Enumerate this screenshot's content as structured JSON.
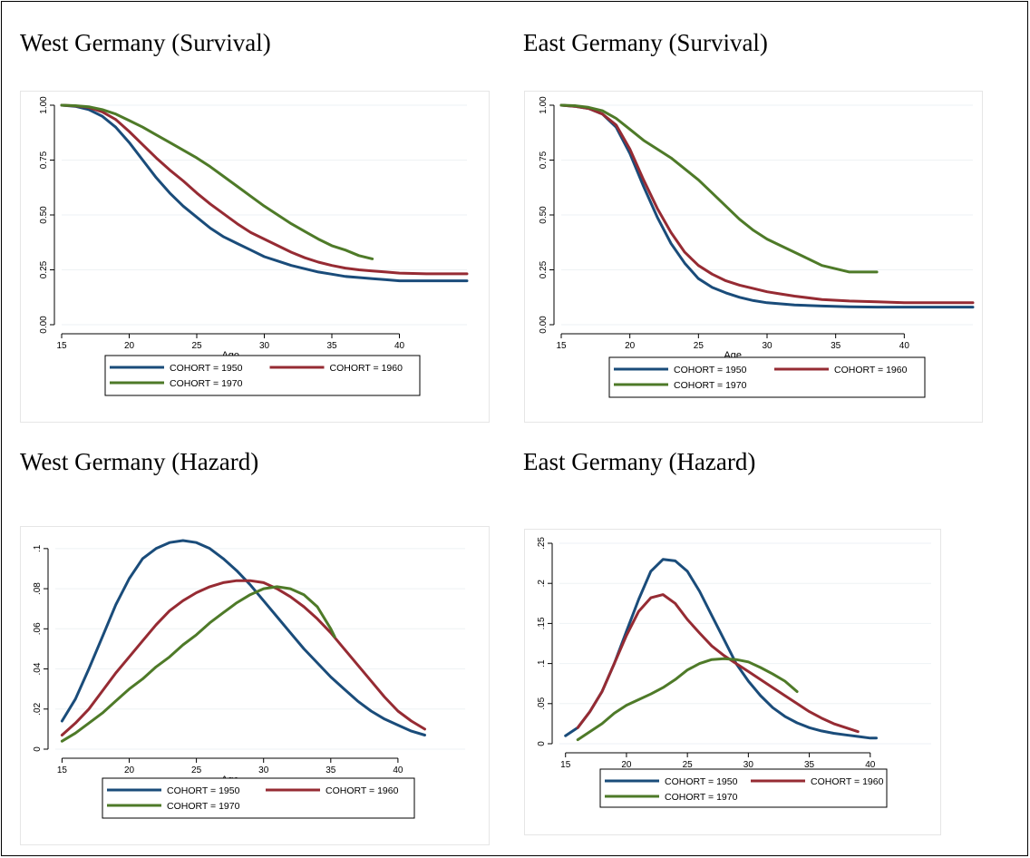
{
  "colors": {
    "c1950": "#1a4c7a",
    "c1960": "#962b33",
    "c1970": "#4e7a28"
  },
  "chart_data": [
    {
      "type": "line",
      "title": "West Germany (Survival)",
      "xlabel": "Age",
      "ylabel": "",
      "xlim": [
        15,
        45
      ],
      "ylim": [
        0,
        1
      ],
      "xticks": [
        15,
        20,
        25,
        30,
        35,
        40
      ],
      "yticks": [
        0,
        0.25,
        0.5,
        0.75,
        1
      ],
      "ytick_labels": [
        "0.00",
        "0.25",
        "0.50",
        "0.75",
        "1.00"
      ],
      "legend_position": "bottom",
      "series": [
        {
          "name": "COHORT = 1950",
          "x": [
            15,
            16,
            17,
            18,
            19,
            20,
            21,
            22,
            23,
            24,
            25,
            26,
            27,
            28,
            29,
            30,
            31,
            32,
            33,
            34,
            35,
            36,
            37,
            38,
            39,
            40,
            42,
            45
          ],
          "y": [
            1.0,
            0.995,
            0.98,
            0.95,
            0.9,
            0.83,
            0.75,
            0.67,
            0.6,
            0.54,
            0.49,
            0.44,
            0.4,
            0.37,
            0.34,
            0.31,
            0.29,
            0.27,
            0.255,
            0.24,
            0.23,
            0.22,
            0.215,
            0.21,
            0.205,
            0.2,
            0.2,
            0.2
          ]
        },
        {
          "name": "COHORT = 1960",
          "x": [
            15,
            16,
            17,
            18,
            19,
            20,
            21,
            22,
            23,
            24,
            25,
            26,
            27,
            28,
            29,
            30,
            31,
            32,
            33,
            34,
            35,
            36,
            37,
            38,
            39,
            40,
            42,
            45
          ],
          "y": [
            1.0,
            0.997,
            0.99,
            0.97,
            0.935,
            0.88,
            0.82,
            0.76,
            0.705,
            0.655,
            0.6,
            0.55,
            0.505,
            0.46,
            0.42,
            0.39,
            0.36,
            0.33,
            0.305,
            0.285,
            0.27,
            0.258,
            0.25,
            0.245,
            0.24,
            0.235,
            0.232,
            0.232
          ]
        },
        {
          "name": "COHORT = 1970",
          "x": [
            15,
            16,
            17,
            18,
            19,
            20,
            21,
            22,
            23,
            24,
            25,
            26,
            27,
            28,
            29,
            30,
            31,
            32,
            33,
            34,
            35,
            36,
            37,
            38
          ],
          "y": [
            1.0,
            0.998,
            0.993,
            0.98,
            0.96,
            0.93,
            0.9,
            0.865,
            0.83,
            0.795,
            0.76,
            0.72,
            0.675,
            0.63,
            0.585,
            0.54,
            0.5,
            0.46,
            0.425,
            0.39,
            0.36,
            0.34,
            0.315,
            0.3
          ]
        }
      ]
    },
    {
      "type": "line",
      "title": "East Germany (Survival)",
      "xlabel": "Age",
      "ylabel": "",
      "xlim": [
        15,
        45
      ],
      "ylim": [
        0,
        1
      ],
      "xticks": [
        15,
        20,
        25,
        30,
        35,
        40
      ],
      "yticks": [
        0,
        0.25,
        0.5,
        0.75,
        1
      ],
      "ytick_labels": [
        "0.00",
        "0.25",
        "0.50",
        "0.75",
        "1.00"
      ],
      "legend_position": "bottom",
      "series": [
        {
          "name": "COHORT = 1950",
          "x": [
            15,
            16,
            17,
            18,
            19,
            20,
            21,
            22,
            23,
            24,
            25,
            26,
            27,
            28,
            29,
            30,
            31,
            32,
            34,
            36,
            38,
            40,
            45
          ],
          "y": [
            1.0,
            0.995,
            0.985,
            0.96,
            0.9,
            0.78,
            0.63,
            0.49,
            0.37,
            0.28,
            0.21,
            0.17,
            0.145,
            0.125,
            0.11,
            0.1,
            0.095,
            0.09,
            0.085,
            0.082,
            0.08,
            0.08,
            0.08
          ]
        },
        {
          "name": "COHORT = 1960",
          "x": [
            15,
            16,
            17,
            18,
            19,
            20,
            21,
            22,
            23,
            24,
            25,
            26,
            27,
            28,
            29,
            30,
            31,
            32,
            34,
            36,
            38,
            40,
            45
          ],
          "y": [
            1.0,
            0.995,
            0.985,
            0.96,
            0.91,
            0.8,
            0.66,
            0.53,
            0.42,
            0.33,
            0.27,
            0.23,
            0.2,
            0.18,
            0.165,
            0.15,
            0.14,
            0.13,
            0.115,
            0.108,
            0.104,
            0.1,
            0.1
          ]
        },
        {
          "name": "COHORT = 1970",
          "x": [
            15,
            16,
            17,
            18,
            19,
            20,
            21,
            22,
            23,
            24,
            25,
            26,
            27,
            28,
            29,
            30,
            31,
            32,
            33,
            34,
            35,
            36,
            37,
            38
          ],
          "y": [
            1.0,
            0.998,
            0.99,
            0.975,
            0.94,
            0.89,
            0.84,
            0.8,
            0.76,
            0.71,
            0.66,
            0.6,
            0.54,
            0.48,
            0.43,
            0.39,
            0.36,
            0.33,
            0.3,
            0.27,
            0.255,
            0.24,
            0.24,
            0.24
          ]
        }
      ]
    },
    {
      "type": "line",
      "title": "West Germany (Hazard)",
      "xlabel": "Age",
      "ylabel": "",
      "xlim": [
        14.5,
        45
      ],
      "ylim": [
        0,
        0.104
      ],
      "xticks": [
        15,
        20,
        25,
        30,
        35,
        40
      ],
      "yticks": [
        0,
        0.02,
        0.04,
        0.06,
        0.08,
        0.1
      ],
      "ytick_labels": [
        "0",
        ".02",
        ".04",
        ".06",
        ".08",
        ".1"
      ],
      "legend_position": "bottom",
      "series": [
        {
          "name": "COHORT = 1950",
          "x": [
            15,
            16,
            17,
            18,
            19,
            20,
            21,
            22,
            23,
            24,
            25,
            26,
            27,
            28,
            29,
            30,
            31,
            32,
            33,
            34,
            35,
            36,
            37,
            38,
            39,
            40,
            41,
            42
          ],
          "y": [
            0.014,
            0.025,
            0.04,
            0.056,
            0.072,
            0.085,
            0.095,
            0.1,
            0.103,
            0.104,
            0.103,
            0.1,
            0.095,
            0.089,
            0.082,
            0.074,
            0.066,
            0.058,
            0.05,
            0.043,
            0.036,
            0.03,
            0.024,
            0.019,
            0.015,
            0.012,
            0.009,
            0.007
          ]
        },
        {
          "name": "COHORT = 1960",
          "x": [
            15,
            16,
            17,
            18,
            19,
            20,
            21,
            22,
            23,
            24,
            25,
            26,
            27,
            28,
            29,
            30,
            31,
            32,
            33,
            34,
            35,
            36,
            37,
            38,
            39,
            40,
            41,
            42
          ],
          "y": [
            0.007,
            0.013,
            0.02,
            0.029,
            0.038,
            0.046,
            0.054,
            0.062,
            0.069,
            0.074,
            0.078,
            0.081,
            0.083,
            0.084,
            0.084,
            0.083,
            0.08,
            0.076,
            0.071,
            0.065,
            0.058,
            0.05,
            0.042,
            0.034,
            0.026,
            0.019,
            0.014,
            0.01
          ]
        },
        {
          "name": "COHORT = 1970",
          "x": [
            15,
            16,
            17,
            18,
            19,
            20,
            21,
            22,
            23,
            24,
            25,
            26,
            27,
            28,
            29,
            30,
            31,
            32,
            33,
            34,
            35,
            35.3
          ],
          "y": [
            0.004,
            0.008,
            0.013,
            0.018,
            0.024,
            0.03,
            0.035,
            0.041,
            0.046,
            0.052,
            0.057,
            0.063,
            0.068,
            0.073,
            0.077,
            0.08,
            0.081,
            0.08,
            0.077,
            0.071,
            0.06,
            0.056
          ]
        }
      ]
    },
    {
      "type": "line",
      "title": "East Germany (Hazard)",
      "xlabel": "Age",
      "ylabel": "",
      "xlim": [
        14.5,
        45
      ],
      "ylim": [
        0,
        0.25
      ],
      "xticks": [
        15,
        20,
        25,
        30,
        35,
        40
      ],
      "yticks": [
        0,
        0.05,
        0.1,
        0.15,
        0.2,
        0.25
      ],
      "ytick_labels": [
        "0",
        ".05",
        ".1",
        ".15",
        ".2",
        ".25"
      ],
      "legend_position": "bottom",
      "series": [
        {
          "name": "COHORT = 1950",
          "x": [
            15,
            16,
            17,
            18,
            19,
            20,
            21,
            22,
            23,
            24,
            25,
            26,
            27,
            28,
            29,
            30,
            31,
            32,
            33,
            34,
            35,
            36,
            37,
            38,
            39,
            40,
            40.5
          ],
          "y": [
            0.01,
            0.02,
            0.04,
            0.065,
            0.1,
            0.14,
            0.18,
            0.215,
            0.23,
            0.228,
            0.215,
            0.19,
            0.16,
            0.13,
            0.1,
            0.078,
            0.06,
            0.045,
            0.034,
            0.026,
            0.02,
            0.016,
            0.013,
            0.011,
            0.009,
            0.007,
            0.007
          ]
        },
        {
          "name": "COHORT = 1960",
          "x": [
            16,
            17,
            18,
            19,
            20,
            21,
            22,
            23,
            24,
            25,
            26,
            27,
            28,
            29,
            30,
            31,
            32,
            33,
            34,
            35,
            36,
            37,
            38,
            39
          ],
          "y": [
            0.02,
            0.04,
            0.065,
            0.1,
            0.135,
            0.165,
            0.182,
            0.186,
            0.175,
            0.155,
            0.138,
            0.122,
            0.11,
            0.1,
            0.09,
            0.08,
            0.07,
            0.06,
            0.05,
            0.04,
            0.032,
            0.025,
            0.02,
            0.015
          ]
        },
        {
          "name": "COHORT = 1970",
          "x": [
            16,
            17,
            18,
            19,
            20,
            21,
            22,
            23,
            24,
            25,
            26,
            27,
            28,
            29,
            30,
            31,
            32,
            33,
            34
          ],
          "y": [
            0.005,
            0.015,
            0.025,
            0.038,
            0.048,
            0.055,
            0.062,
            0.07,
            0.08,
            0.092,
            0.1,
            0.105,
            0.106,
            0.105,
            0.102,
            0.095,
            0.087,
            0.078,
            0.065
          ]
        }
      ]
    }
  ]
}
